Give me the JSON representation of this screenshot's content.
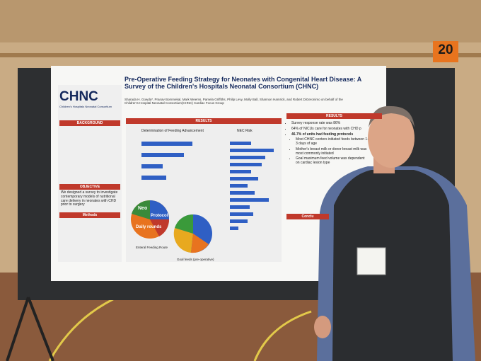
{
  "sign": "20",
  "poster": {
    "logo": "CHNC",
    "logo_subtitle": "Children's Hospitals Neonatal Consortium",
    "title": "Pre-Operative Feeding Strategy for Neonates with Congenital Heart Disease: A Survey of the Children's Hospitals Neonatal Consortium (CHNC)",
    "authors": "Sharada H. Gowda*, Pranav Bommekal, Mark Weems, Pamela Griffiths, Philip Levy, Molly Ball, Shannon Hamrick, and Robert DiGeronimo on behalf of the Children's Hospital Neonatal Consortium(CHNC) Cardiac Focus Group",
    "background_heading": "BACKGROUND",
    "objective_heading": "OBJECTIVE",
    "objective_text": "We designed a survey to investigate contemporary models of nutritional care delivery in neonates with CHD prior to surgery",
    "methods_heading": "Methods",
    "results_heading": "RESULTS",
    "chart_titles": [
      "Determination of Feeding Advancement",
      "NEC Risk",
      "Enteral Feeding Route",
      "Goal feeds (pre-operative)"
    ],
    "pie_labels": [
      "Neo",
      "Protocol",
      "Daily rounds"
    ],
    "results_right_heading": "RESULTS",
    "results_bullets": [
      "Survey response rate was 86%",
      "64% of NICUs care for neonates with CHD p",
      "46.7% of units had feeding protocols",
      "Most CHNC centers initiated feeds between 1-3 days of age",
      "Mother's breast milk or donor breast milk was most commonly initiated",
      "Goal maximum feed volume was dependent on cardiac lesion type"
    ],
    "conclusions_heading": "Conclu"
  }
}
